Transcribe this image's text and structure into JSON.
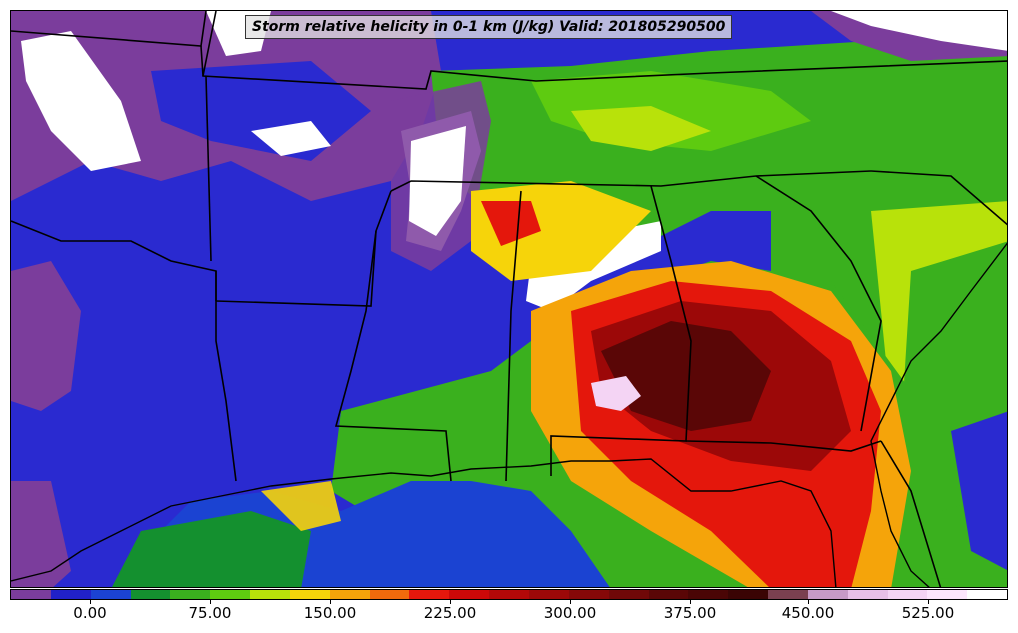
{
  "map": {
    "title": "Storm relative helicity in 0-1 km (J/kg) Valid: 201805290500"
  },
  "colorbar": {
    "colors": [
      "#7b3d9c",
      "#2121c8",
      "#1b43d2",
      "#14902f",
      "#3ab01e",
      "#5ecb10",
      "#b8e20a",
      "#f6d40a",
      "#f5a40a",
      "#f06a0c",
      "#e4170c",
      "#cc0808",
      "#b30808",
      "#9c0808",
      "#850808",
      "#700808",
      "#5a0606",
      "#4a0505",
      "#3a0404",
      "#7a4050",
      "#c79ac7",
      "#e7bfe7",
      "#f4d4f4",
      "#fde6fd",
      "#ffffff"
    ],
    "tick_labels": [
      "0.00",
      "75.00",
      "150.00",
      "225.00",
      "300.00",
      "375.00",
      "450.00",
      "525.00"
    ]
  }
}
